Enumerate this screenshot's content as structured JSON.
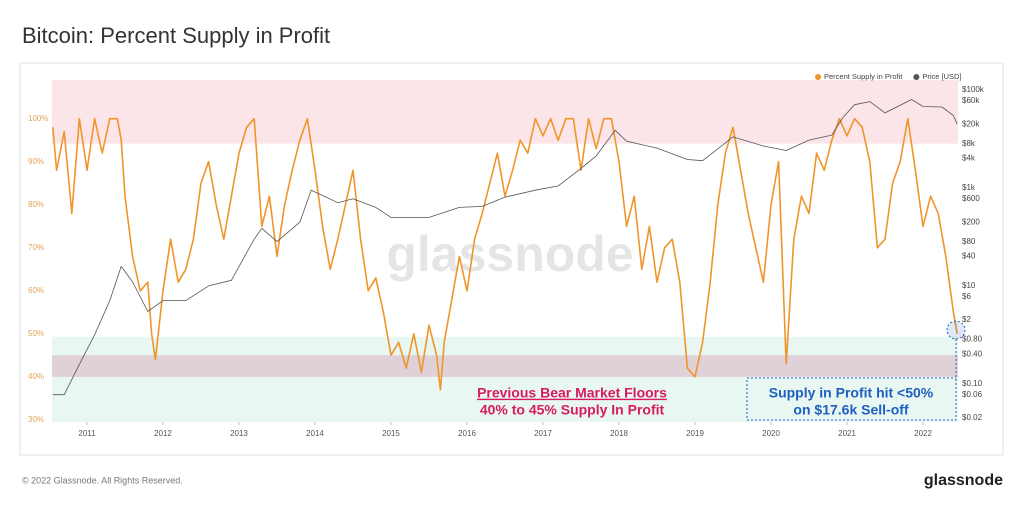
{
  "chart_data": {
    "type": "line",
    "title": "Bitcoin: Percent Supply in Profit",
    "watermark": "glassnode",
    "xlim": [
      2010.54,
      2022.46
    ],
    "xticks": [
      2011,
      2012,
      2013,
      2014,
      2015,
      2016,
      2017,
      2018,
      2019,
      2020,
      2021,
      2022
    ],
    "ylim": [
      29.5,
      109
    ],
    "yticks": [
      {
        "value": 30,
        "label": "30%"
      },
      {
        "value": 40,
        "label": "40%"
      },
      {
        "value": 50,
        "label": "50%"
      },
      {
        "value": 60,
        "label": "60%"
      },
      {
        "value": 70,
        "label": "70%"
      },
      {
        "value": 80,
        "label": "80%"
      },
      {
        "value": 90,
        "label": "90%"
      },
      {
        "value": 100,
        "label": "100%"
      }
    ],
    "y2lim": [
      0.0166,
      160000
    ],
    "y2scale": "log",
    "y2ticks": [
      {
        "value": 100000,
        "label": "$100k"
      },
      {
        "value": 60000,
        "label": "$60k"
      },
      {
        "value": 20000,
        "label": "$20k"
      },
      {
        "value": 8000,
        "label": "$8k"
      },
      {
        "value": 4000,
        "label": "$4k"
      },
      {
        "value": 1000,
        "label": "$1k"
      },
      {
        "value": 600,
        "label": "$600"
      },
      {
        "value": 200,
        "label": "$200"
      },
      {
        "value": 80,
        "label": "$80"
      },
      {
        "value": 40,
        "label": "$40"
      },
      {
        "value": 10,
        "label": "$10"
      },
      {
        "value": 6,
        "label": "$6"
      },
      {
        "value": 2,
        "label": "$2"
      },
      {
        "value": 0.8,
        "label": "$0.80"
      },
      {
        "value": 0.4,
        "label": "$0.40"
      },
      {
        "value": 0.1,
        "label": "$0.10"
      },
      {
        "value": 0.06,
        "label": "$0.06"
      },
      {
        "value": 0.02,
        "label": "$0.02"
      }
    ],
    "legend": "top-right",
    "bands": [
      {
        "from": 94.2,
        "to": 109,
        "color": "rgba(240,110,130,0.18)"
      },
      {
        "from": 29.5,
        "to": 49.3,
        "color": "rgba(90,200,160,0.14)"
      },
      {
        "from": 40,
        "to": 45,
        "color": "rgba(200,90,140,0.25)"
      }
    ],
    "series": [
      {
        "name": "Percent Supply in Profit",
        "color": "#f0952a",
        "x": [
          2010.55,
          2010.6,
          2010.7,
          2010.8,
          2010.9,
          2011.0,
          2011.1,
          2011.2,
          2011.3,
          2011.4,
          2011.45,
          2011.5,
          2011.6,
          2011.7,
          2011.8,
          2011.85,
          2011.9,
          2012.0,
          2012.1,
          2012.2,
          2012.3,
          2012.4,
          2012.5,
          2012.6,
          2012.7,
          2012.8,
          2012.9,
          2013.0,
          2013.1,
          2013.2,
          2013.3,
          2013.4,
          2013.5,
          2013.6,
          2013.7,
          2013.8,
          2013.9,
          2014.0,
          2014.1,
          2014.2,
          2014.3,
          2014.4,
          2014.5,
          2014.6,
          2014.7,
          2014.8,
          2014.9,
          2015.0,
          2015.1,
          2015.2,
          2015.3,
          2015.4,
          2015.5,
          2015.6,
          2015.65,
          2015.7,
          2015.8,
          2015.9,
          2016.0,
          2016.1,
          2016.2,
          2016.3,
          2016.4,
          2016.5,
          2016.6,
          2016.7,
          2016.8,
          2016.9,
          2017.0,
          2017.1,
          2017.2,
          2017.3,
          2017.4,
          2017.5,
          2017.6,
          2017.7,
          2017.8,
          2017.9,
          2018.0,
          2018.1,
          2018.2,
          2018.3,
          2018.4,
          2018.5,
          2018.6,
          2018.7,
          2018.8,
          2018.9,
          2019.0,
          2019.1,
          2019.2,
          2019.3,
          2019.4,
          2019.5,
          2019.6,
          2019.7,
          2019.8,
          2019.9,
          2020.0,
          2020.1,
          2020.2,
          2020.3,
          2020.4,
          2020.5,
          2020.6,
          2020.7,
          2020.8,
          2020.9,
          2021.0,
          2021.1,
          2021.2,
          2021.3,
          2021.4,
          2021.5,
          2021.6,
          2021.7,
          2021.8,
          2021.9,
          2022.0,
          2022.1,
          2022.2,
          2022.3,
          2022.4,
          2022.45
        ],
        "values": [
          98,
          88,
          97,
          78,
          100,
          88,
          100,
          92,
          100,
          100,
          95,
          82,
          68,
          60,
          62,
          50,
          44,
          60,
          72,
          62,
          65,
          72,
          85,
          90,
          80,
          72,
          82,
          92,
          98,
          100,
          75,
          82,
          68,
          80,
          88,
          95,
          100,
          88,
          75,
          65,
          72,
          80,
          88,
          72,
          60,
          63,
          55,
          45,
          48,
          42,
          50,
          41,
          52,
          45,
          37,
          48,
          58,
          68,
          60,
          72,
          78,
          85,
          92,
          82,
          88,
          95,
          92,
          100,
          96,
          100,
          95,
          100,
          100,
          88,
          100,
          93,
          100,
          100,
          90,
          75,
          82,
          65,
          75,
          62,
          70,
          72,
          62,
          42,
          40,
          48,
          62,
          80,
          92,
          98,
          88,
          78,
          70,
          62,
          80,
          90,
          43,
          72,
          82,
          78,
          92,
          88,
          95,
          100,
          96,
          100,
          98,
          90,
          70,
          72,
          85,
          90,
          100,
          88,
          75,
          82,
          78,
          68,
          55,
          50
        ]
      },
      {
        "name": "Price [USD]",
        "color": "#555555",
        "axis": "y2",
        "x": [
          2010.55,
          2010.7,
          2010.9,
          2011.1,
          2011.3,
          2011.45,
          2011.6,
          2011.8,
          2012.0,
          2012.3,
          2012.6,
          2012.9,
          2013.2,
          2013.3,
          2013.5,
          2013.8,
          2013.95,
          2014.1,
          2014.3,
          2014.5,
          2014.8,
          2015.0,
          2015.5,
          2015.9,
          2016.2,
          2016.5,
          2016.9,
          2017.2,
          2017.5,
          2017.7,
          2017.95,
          2018.1,
          2018.5,
          2018.9,
          2019.1,
          2019.5,
          2019.9,
          2020.2,
          2020.5,
          2020.8,
          2020.95,
          2021.1,
          2021.3,
          2021.5,
          2021.85,
          2022.0,
          2022.25,
          2022.4,
          2022.45
        ],
        "values": [
          0.06,
          0.06,
          0.25,
          1,
          5,
          25,
          12,
          3,
          5,
          5,
          10,
          13,
          90,
          150,
          80,
          200,
          900,
          700,
          500,
          600,
          400,
          250,
          250,
          400,
          420,
          650,
          900,
          1100,
          2500,
          4500,
          15000,
          9000,
          6500,
          3800,
          3600,
          11000,
          7200,
          5800,
          9500,
          12000,
          28000,
          50000,
          58000,
          34000,
          64000,
          46000,
          45000,
          30000,
          20000
        ]
      }
    ],
    "annotations": [
      {
        "text": "Previous Bear Market Floors",
        "color": "#d81b60"
      },
      {
        "text": "40% to 45% Supply In Profit",
        "color": "#d81b60"
      },
      {
        "text": "Supply in Profit hit <50%",
        "color": "#1e5fc0"
      },
      {
        "text": "on $17.6k Sell-off",
        "color": "#1e5fc0"
      }
    ]
  },
  "footer": {
    "copyright": "© 2022 Glassnode. All Rights Reserved.",
    "brand": "glassnode"
  }
}
